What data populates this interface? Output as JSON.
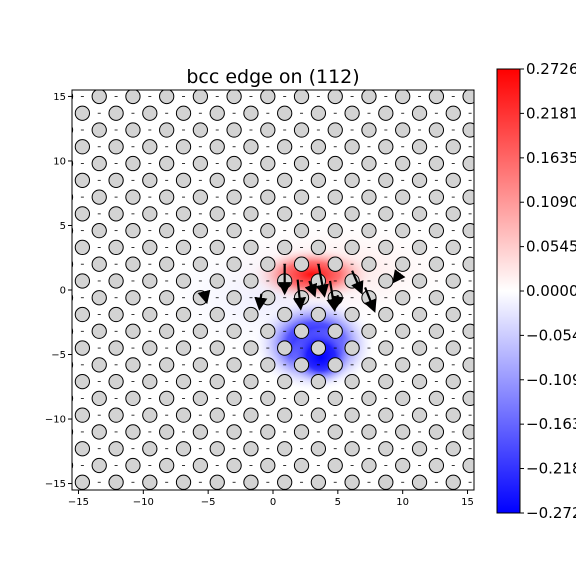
{
  "chart_data": {
    "type": "heatmap",
    "title": "bcc edge on (112)",
    "xlabel": "",
    "ylabel": "",
    "xlim": [
      -15.5,
      15.5
    ],
    "ylim": [
      -15.5,
      15.5
    ],
    "x_ticks": [
      -15,
      -10,
      -5,
      0,
      5,
      10,
      15
    ],
    "y_ticks": [
      -15,
      -10,
      -5,
      0,
      5,
      10,
      15
    ],
    "x_tick_labels": [
      "−15",
      "−10",
      "−5",
      "0",
      "5",
      "10",
      "15"
    ],
    "y_tick_labels": [
      "−15",
      "−10",
      "−5",
      "0",
      "5",
      "10",
      "15"
    ],
    "colormap": "bwr",
    "colorbar": {
      "min": -0.2726,
      "max": 0.2726,
      "min_color": "#0000ff",
      "mid_color": "#ffffff",
      "max_color": "#ff0000",
      "ticks": [
        -0.2726,
        -0.218,
        -0.1635,
        -0.109,
        -0.0545,
        0.0,
        0.0545,
        0.109,
        0.1635,
        0.2181,
        0.2726
      ],
      "tick_labels": [
        "−0.2726",
        "−0.218",
        "−0.163",
        "−0.109",
        "−0.054",
        "0.0000",
        "0.0545",
        "0.1090",
        "0.1635",
        "0.2181",
        "0.2726"
      ]
    },
    "atoms": {
      "face_color": "#d3d3d3",
      "edge_color": "#000000",
      "radius": 0.55,
      "lattice": {
        "a1": [
          2.6,
          0.0
        ],
        "a2": [
          1.3,
          1.3
        ],
        "origin": [
          0.9,
          -1.9
        ]
      }
    },
    "displacement_arrows": [
      {
        "x": 0.9,
        "y": 2.0,
        "u": 0.0,
        "v": -1.9
      },
      {
        "x": 1.9,
        "y": 0.8,
        "u": 0.2,
        "v": -1.9
      },
      {
        "x": 3.5,
        "y": 2.0,
        "u": 0.4,
        "v": -2.1
      },
      {
        "x": 4.4,
        "y": 0.7,
        "u": 0.3,
        "v": -1.9
      },
      {
        "x": 6.1,
        "y": 1.5,
        "u": 0.6,
        "v": -1.4
      },
      {
        "x": 7.1,
        "y": 0.2,
        "u": 0.6,
        "v": -1.5
      },
      {
        "x": 2.8,
        "y": 0.7,
        "u": 0.3,
        "v": -0.8
      },
      {
        "x": 5.0,
        "y": -0.4,
        "u": -0.1,
        "v": -0.6
      },
      {
        "x": -0.9,
        "y": -0.3,
        "u": -0.1,
        "v": -0.8
      },
      {
        "x": 9.8,
        "y": 1.3,
        "u": -0.3,
        "v": -0.4
      },
      {
        "x": -5.3,
        "y": -0.2,
        "u": 0.1,
        "v": -0.4
      }
    ],
    "positive_lobe": {
      "center": [
        3.0,
        1.2
      ],
      "value": 0.2726
    },
    "negative_lobe": {
      "center": [
        3.2,
        -4.2
      ],
      "value": -0.2726
    }
  }
}
